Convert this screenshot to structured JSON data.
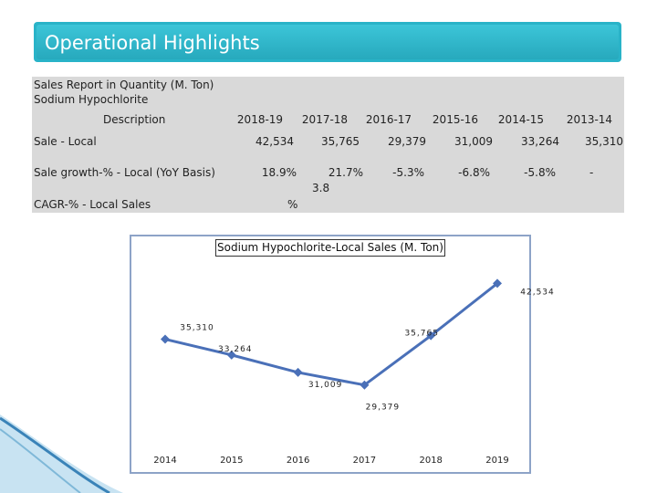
{
  "title": "Operational Highlights",
  "report": {
    "heading1": "Sales Report in Quantity (M. Ton)",
    "heading2": "Sodium Hypochlorite",
    "desc_label": "Description",
    "years": [
      "2018-19",
      "2017-18",
      "2016-17",
      "2015-16",
      "2014-15",
      "2013-14"
    ],
    "rows": [
      {
        "label": "Sale - Local",
        "values": [
          "42,534",
          "35,765",
          "29,379",
          "31,009",
          "33,264",
          "35,310"
        ]
      },
      {
        "label": "Sale growth-% - Local (YoY Basis)",
        "values": [
          "18.9%",
          "21.7%",
          "-5.3%",
          "-6.8%",
          "-5.8%",
          "-"
        ]
      },
      {
        "label": "CAGR-% - Local Sales",
        "values": [
          "3.8",
          "%"
        ]
      }
    ],
    "growth_2017_18_line2": "3.8",
    "cagr_percent": "%"
  },
  "chart_data": {
    "type": "line",
    "title": "Sodium Hypochlorite-Local Sales (M. Ton)",
    "x": [
      2014,
      2015,
      2016,
      2017,
      2018,
      2019
    ],
    "x_labels": [
      "2014",
      "2015",
      "2016",
      "2017",
      "2018",
      "2019"
    ],
    "values": [
      35310,
      33264,
      31009,
      29379,
      35765,
      42534
    ],
    "data_labels": [
      "35,310",
      "33,264",
      "31,009",
      "29,379",
      "35,765",
      "42,534"
    ],
    "ylim": [
      18000,
      44000
    ],
    "series_color": "#4a70b8"
  }
}
